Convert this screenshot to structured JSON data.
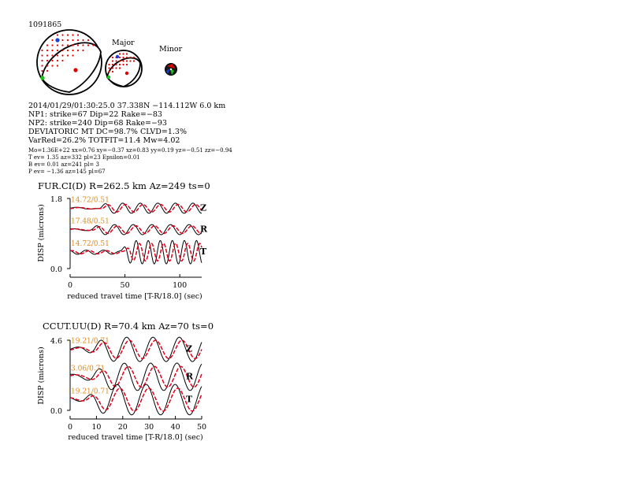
{
  "event_id": "1091865",
  "mechanism_labels": {
    "major": "Major",
    "minor": "Minor"
  },
  "info": {
    "line1": "2014/01/29/01:30:25.0 37.338N −114.112W 6.0 km",
    "line2": "NP1: strike=67 Dip=22 Rake=−83",
    "line3": "NP2: strike=240 Dip=68 Rake=−93",
    "line4": "DEVIATORIC MT DC=98.7% CLVD=1.3%",
    "line5": "VarRed=26.2% TOTFIT=11.4 Mw=4.02",
    "line6": "Mo=1.36E+22 xx=0.76 xy=−0.37 xz=0.83 yy=0.19 yz=−0.51 zz=−0.94",
    "line7": "T ev=  1.35 az=332 pl=23 Epsilon=0.01",
    "line8": "B ev=  0.01 az=241 pl= 3",
    "line9": "P ev= −1.36 az=145 pl=67"
  },
  "colors": {
    "observed": "#000000",
    "synthetic": "#e0001b",
    "label": "#d98a1f",
    "blue": "#1a3de0",
    "green": "#19c419",
    "red": "#e00000"
  },
  "chart_data": [
    {
      "type": "line",
      "title": "FUR.CI(D) R=262.5 km Az=249 ts=0",
      "xlabel": "reduced travel time [T-R/18.0] (sec)",
      "ylabel": "DISP (microns)",
      "xlim": [
        0,
        120
      ],
      "ylim": [
        0.0,
        1.8
      ],
      "y_tick_labels": [
        "1.8",
        "0.0"
      ],
      "x_ticks": [
        0,
        50,
        100
      ],
      "traces": [
        {
          "component": "Z",
          "label": "14.72/0.51",
          "offset": 1.55,
          "amp": 0.13,
          "period": 16,
          "onset": 28,
          "phase": 0.0,
          "shift": 2.5
        },
        {
          "component": "R",
          "label": "17.48/0.51",
          "offset": 1.0,
          "amp": 0.13,
          "period": 17,
          "onset": 22,
          "phase": 1.0,
          "shift": 2.5
        },
        {
          "component": "T",
          "label": "14.72/0.51",
          "offset": 0.42,
          "amp": 0.3,
          "period": 11,
          "onset": 50,
          "phase": 2.0,
          "shift": 3.0
        }
      ]
    },
    {
      "type": "line",
      "title": "CCUT.UU(D) R=70.4 km Az=70 ts=0",
      "xlabel": "reduced travel time [T-R/18.0] (sec)",
      "ylabel": "DISP (microns)",
      "xlim": [
        0,
        50
      ],
      "ylim": [
        0.0,
        4.6
      ],
      "y_tick_labels": [
        "4.6",
        "0.0"
      ],
      "x_ticks": [
        0,
        10,
        20,
        30,
        40,
        50
      ],
      "traces": [
        {
          "component": "Z",
          "label": "19.21/0.71",
          "offset": 4.0,
          "amp": 0.8,
          "period": 10,
          "onset": 9,
          "phase": 0.0,
          "shift": 1.0
        },
        {
          "component": "R",
          "label": "3.06/0.71",
          "offset": 2.2,
          "amp": 0.9,
          "period": 10,
          "onset": 10,
          "phase": 1.2,
          "shift": 1.5
        },
        {
          "component": "T",
          "label": "19.21/0.71",
          "offset": 0.7,
          "amp": 1.0,
          "period": 11,
          "onset": 8,
          "phase": 2.2,
          "shift": 1.0
        }
      ]
    }
  ]
}
